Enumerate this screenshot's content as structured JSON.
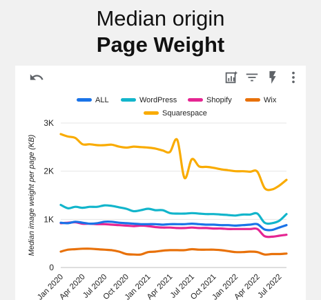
{
  "header": {
    "line1": "Median origin",
    "line2": "Page Weight"
  },
  "toolbar": {
    "undo_icon": "undo-icon",
    "insights_icon": "chart-insights-icon",
    "filter_icon": "filter-icon",
    "flash_icon": "flash-icon",
    "menu_icon": "more-vert-icon"
  },
  "chart_data": {
    "type": "line",
    "title": "",
    "xlabel": "",
    "ylabel": "Median image weight per page (KB)",
    "ylim": [
      0,
      3000
    ],
    "y_ticks": [
      0,
      1000,
      2000,
      3000
    ],
    "y_tick_labels": [
      "0",
      "1K",
      "2K",
      "3K"
    ],
    "x_range": [
      "2020-01",
      "2022-08"
    ],
    "x_tick_labels": [
      "Jan 2020",
      "Apr 2020",
      "Jul 2020",
      "Oct 2020",
      "Jan 2021",
      "Apr 2021",
      "Jul 2021",
      "Oct 2021",
      "Jan 2022",
      "Apr 2022",
      "Jul 2022"
    ],
    "grid": true,
    "legend_position": "top",
    "x": [
      "2020-01",
      "2020-02",
      "2020-03",
      "2020-04",
      "2020-05",
      "2020-06",
      "2020-07",
      "2020-08",
      "2020-09",
      "2020-10",
      "2020-11",
      "2020-12",
      "2021-01",
      "2021-02",
      "2021-03",
      "2021-04",
      "2021-05",
      "2021-06",
      "2021-07",
      "2021-08",
      "2021-09",
      "2021-10",
      "2021-11",
      "2021-12",
      "2022-01",
      "2022-02",
      "2022-03",
      "2022-04",
      "2022-05",
      "2022-06",
      "2022-07",
      "2022-08"
    ],
    "series": [
      {
        "name": "ALL",
        "color": "#1a73e8",
        "values": [
          930,
          920,
          950,
          930,
          910,
          920,
          950,
          950,
          930,
          920,
          910,
          900,
          900,
          900,
          890,
          900,
          900,
          900,
          910,
          900,
          890,
          890,
          880,
          880,
          870,
          880,
          890,
          900,
          790,
          780,
          830,
          880
        ]
      },
      {
        "name": "WordPress",
        "color": "#12b5cb",
        "values": [
          1300,
          1230,
          1260,
          1240,
          1260,
          1260,
          1290,
          1280,
          1250,
          1220,
          1170,
          1190,
          1220,
          1190,
          1190,
          1130,
          1120,
          1120,
          1130,
          1120,
          1110,
          1110,
          1100,
          1090,
          1080,
          1100,
          1100,
          1120,
          930,
          920,
          970,
          1110
        ]
      },
      {
        "name": "Shopify",
        "color": "#e52592",
        "values": [
          920,
          930,
          940,
          910,
          910,
          900,
          900,
          890,
          880,
          870,
          860,
          870,
          860,
          840,
          830,
          830,
          820,
          820,
          830,
          820,
          820,
          810,
          810,
          800,
          800,
          800,
          800,
          800,
          650,
          640,
          660,
          680
        ]
      },
      {
        "name": "Wix",
        "color": "#e8710a",
        "values": [
          330,
          370,
          380,
          390,
          390,
          380,
          370,
          360,
          330,
          280,
          270,
          270,
          320,
          330,
          350,
          360,
          360,
          360,
          380,
          370,
          370,
          370,
          360,
          340,
          320,
          320,
          330,
          320,
          270,
          280,
          280,
          290
        ]
      },
      {
        "name": "Squarespace",
        "color": "#f9ab00",
        "values": [
          2770,
          2720,
          2690,
          2560,
          2560,
          2540,
          2540,
          2550,
          2510,
          2490,
          2510,
          2500,
          2490,
          2470,
          2430,
          2400,
          2650,
          1860,
          2250,
          2100,
          2090,
          2070,
          2040,
          2020,
          2000,
          2000,
          1990,
          1990,
          1650,
          1620,
          1700,
          1820
        ]
      }
    ]
  }
}
